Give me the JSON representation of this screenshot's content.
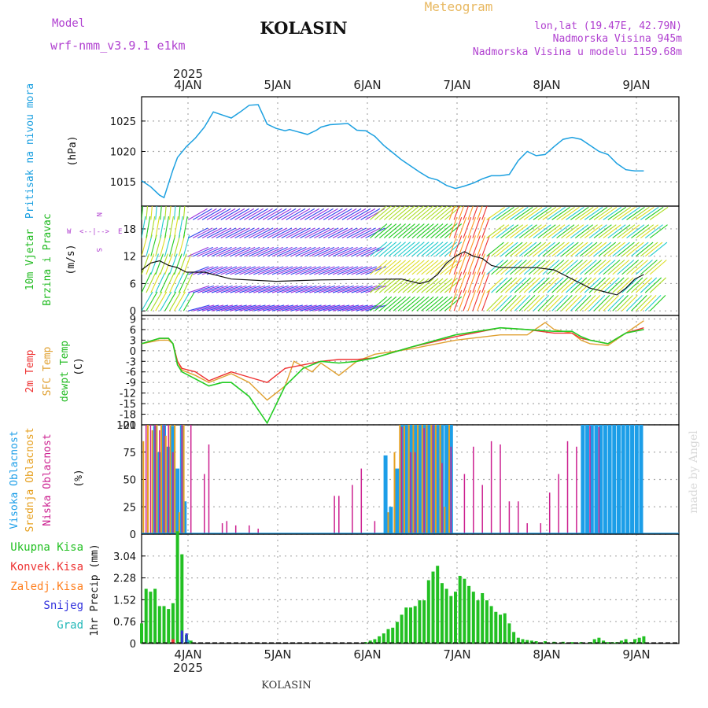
{
  "header": {
    "model_label": "Model",
    "model_name": "wrf-nmm_v3.9.1 e1km",
    "station": "KOLASIN",
    "product": "Meteogram",
    "coords": "lon,lat (19.47E, 42.79N)",
    "elevation": "Nadmorska Visina 945m",
    "model_elevation": "Nadmorska Visina u modelu 1159.68m",
    "footer_station": "KOLASIN",
    "credit": "made by Angel"
  },
  "time_axis": {
    "year": "2025",
    "days": [
      "4JAN",
      "5JAN",
      "6JAN",
      "7JAN",
      "8JAN",
      "9JAN"
    ]
  },
  "colors": {
    "pressure": "#1ca0e0",
    "temp2m": "#ee3333",
    "sfc": "#e0a030",
    "dew": "#22cc22",
    "high": "#1c9ee8",
    "mid": "#e6a020",
    "low": "#cc2090",
    "total": "#22c022",
    "convective": "#ee3333",
    "freezing": "#ff8020",
    "snow": "#3333dd",
    "hail": "#22b8b8",
    "title_purple": "#b040d0",
    "meteogram_orange": "#e8b860"
  },
  "chart_data": [
    {
      "type": "line",
      "title": "",
      "ylabel": [
        "Pritisak na nivou mora",
        "(hPa)"
      ],
      "yticks": [
        1015,
        1020,
        1025
      ],
      "ylim": [
        1011,
        1029
      ],
      "series": [
        {
          "name": "Pritisak na nivou mora",
          "x": [
            0.0,
            0.1,
            0.2,
            0.25,
            0.35,
            0.4,
            0.5,
            0.6,
            0.7,
            0.8,
            0.9,
            1.0,
            1.1,
            1.2,
            1.3,
            1.4,
            1.5,
            1.6,
            1.65,
            1.75,
            1.85,
            1.95,
            2.0,
            2.1,
            2.2,
            2.3,
            2.4,
            2.5,
            2.6,
            2.7,
            2.8,
            2.9,
            3.0,
            3.1,
            3.2,
            3.3,
            3.4,
            3.5,
            3.6,
            3.7,
            3.8,
            3.9,
            4.0,
            4.1,
            4.2,
            4.3,
            4.4,
            4.5,
            4.6,
            4.7,
            4.8,
            4.9,
            5.0,
            5.1,
            5.2,
            5.3,
            5.4,
            5.5,
            5.6
          ],
          "y": [
            1015.2,
            1014.2,
            1012.8,
            1012.4,
            1017.0,
            1019.0,
            1020.8,
            1022.2,
            1024.0,
            1026.5,
            1026.0,
            1025.5,
            1026.5,
            1027.6,
            1027.7,
            1024.5,
            1023.8,
            1023.4,
            1023.6,
            1023.2,
            1022.8,
            1023.5,
            1024.0,
            1024.4,
            1024.5,
            1024.6,
            1023.5,
            1023.4,
            1022.5,
            1021.0,
            1019.8,
            1018.6,
            1017.6,
            1016.6,
            1015.7,
            1015.3,
            1014.4,
            1013.9,
            1014.3,
            1014.8,
            1015.5,
            1016.0,
            1016.0,
            1016.2,
            1018.5,
            1020.0,
            1019.3,
            1019.5,
            1020.8,
            1022.0,
            1022.3,
            1022.0,
            1021.0,
            1020.0,
            1019.5,
            1018.0,
            1017.0,
            1016.8,
            1016.8
          ]
        }
      ]
    },
    {
      "type": "line",
      "title": "",
      "ylabel": [
        "10m Vjetar",
        "Brzina i Pravac",
        "(m/s)"
      ],
      "yticks": [
        0,
        6,
        12,
        18
      ],
      "ylim": [
        -1,
        23
      ],
      "legend": [
        "W",
        "<--|-->",
        "E",
        "N",
        "S"
      ],
      "series": [
        {
          "name": "10m Vjetar",
          "x": [
            0.0,
            0.1,
            0.2,
            0.3,
            0.4,
            0.5,
            0.6,
            0.7,
            0.8,
            0.9,
            1.0,
            1.5,
            2.0,
            2.5,
            2.9,
            3.0,
            3.1,
            3.2,
            3.3,
            3.4,
            3.5,
            3.6,
            3.7,
            3.8,
            3.9,
            4.0,
            4.2,
            4.4,
            4.6,
            4.7,
            4.8,
            4.9,
            5.0,
            5.1,
            5.2,
            5.3,
            5.4,
            5.5,
            5.6
          ],
          "y": [
            9.0,
            10.5,
            11.0,
            10.0,
            9.5,
            8.5,
            8.5,
            8.5,
            8.0,
            7.5,
            7.0,
            6.5,
            6.8,
            6.9,
            7.0,
            6.5,
            6.0,
            6.5,
            8.0,
            10.5,
            12.0,
            13.0,
            12.0,
            11.5,
            10.0,
            9.5,
            9.5,
            9.5,
            9.0,
            8.0,
            7.0,
            6.0,
            5.0,
            4.5,
            4.0,
            3.5,
            5.0,
            7.0,
            8.0
          ]
        }
      ]
    },
    {
      "type": "line",
      "title": "",
      "ylabel": [
        "2m Temp",
        "SFC Temp",
        "dewpt Temp",
        "(C)"
      ],
      "yticks": [
        -21,
        -18,
        -15,
        -12,
        -9,
        -6,
        -3,
        0,
        3,
        6,
        9
      ],
      "ylim": [
        -21,
        10
      ],
      "series": [
        {
          "name": "2m Temp",
          "x": [
            0.0,
            0.2,
            0.3,
            0.35,
            0.4,
            0.45,
            0.6,
            0.75,
            0.9,
            1.0,
            1.2,
            1.4,
            1.6,
            1.8,
            2.0,
            2.2,
            2.4,
            2.6,
            3.0,
            3.5,
            4.0,
            4.3,
            4.6,
            4.8,
            4.9,
            5.0,
            5.2,
            5.4,
            5.6
          ],
          "y": [
            2.0,
            3.5,
            3.5,
            2.0,
            -3.0,
            -5.0,
            -6.0,
            -8.5,
            -7.0,
            -6.0,
            -7.5,
            -9.0,
            -5.0,
            -4.0,
            -3.0,
            -2.5,
            -2.5,
            -2.0,
            1.0,
            4.0,
            6.5,
            6.0,
            5.0,
            5.0,
            3.5,
            3.0,
            2.0,
            5.0,
            6.5
          ]
        },
        {
          "name": "SFC Temp",
          "x": [
            0.0,
            0.2,
            0.3,
            0.35,
            0.4,
            0.45,
            0.6,
            0.75,
            0.9,
            1.0,
            1.2,
            1.4,
            1.6,
            1.7,
            1.9,
            2.0,
            2.2,
            2.4,
            2.6,
            3.0,
            3.5,
            4.0,
            4.3,
            4.5,
            4.6,
            4.8,
            4.9,
            5.0,
            5.2,
            5.4,
            5.6
          ],
          "y": [
            2.0,
            3.0,
            3.0,
            2.0,
            -3.0,
            -5.5,
            -7.0,
            -9.0,
            -7.5,
            -6.5,
            -9.0,
            -14.0,
            -10.0,
            -3.0,
            -6.0,
            -3.5,
            -7.0,
            -3.0,
            -1.0,
            0.5,
            3.0,
            4.5,
            4.5,
            8.0,
            6.0,
            5.0,
            3.0,
            2.0,
            1.5,
            5.0,
            8.5
          ]
        },
        {
          "name": "dewpt Temp",
          "x": [
            0.0,
            0.2,
            0.3,
            0.35,
            0.4,
            0.45,
            0.6,
            0.75,
            0.9,
            1.0,
            1.2,
            1.4,
            1.6,
            1.8,
            2.0,
            2.2,
            2.4,
            2.6,
            3.0,
            3.5,
            4.0,
            4.3,
            4.6,
            4.8,
            4.9,
            5.0,
            5.2,
            5.4,
            5.6
          ],
          "y": [
            2.0,
            3.5,
            3.5,
            2.0,
            -4.0,
            -6.0,
            -8.0,
            -10.0,
            -9.0,
            -9.0,
            -13.0,
            -20.5,
            -10.0,
            -5.0,
            -3.0,
            -3.5,
            -3.0,
            -2.0,
            1.0,
            4.5,
            6.5,
            6.0,
            5.5,
            5.5,
            4.0,
            3.0,
            2.0,
            5.0,
            6.0
          ]
        }
      ]
    },
    {
      "type": "bar",
      "title": "",
      "ylabel": [
        "Visoka Oblacnost",
        "Srednja Oblacnost",
        "Niska Oblacnost",
        "(%)"
      ],
      "yticks": [
        0,
        25,
        50,
        75,
        100
      ],
      "ylim": [
        0,
        100
      ],
      "series": [
        {
          "name": "Visoka Oblacnost",
          "x": [
            0.15,
            0.2,
            0.25,
            0.3,
            0.35,
            0.4,
            0.45,
            0.48,
            2.72,
            2.78,
            2.85,
            2.9,
            2.95,
            3.0,
            3.05,
            3.1,
            3.15,
            3.2,
            3.25,
            3.3,
            3.35,
            3.4,
            3.45,
            4.92,
            4.97,
            5.02,
            5.07,
            5.12,
            5.17,
            5.22,
            5.27,
            5.32,
            5.37,
            5.42,
            5.47,
            5.52,
            5.57
          ],
          "values": [
            99,
            75,
            100,
            80,
            99,
            60,
            100,
            30,
            72,
            25,
            60,
            100,
            100,
            100,
            100,
            100,
            100,
            100,
            100,
            100,
            100,
            100,
            100,
            100,
            100,
            100,
            100,
            100,
            100,
            100,
            100,
            100,
            100,
            100,
            100,
            100,
            100
          ]
        },
        {
          "name": "Srednja Oblacnost",
          "x": [
            0.02,
            0.07,
            0.12,
            0.17,
            0.22,
            0.27,
            0.32,
            0.37,
            0.42,
            0.47,
            2.75,
            2.82,
            2.88,
            2.93,
            2.98,
            3.03,
            3.08,
            3.13,
            3.18,
            3.23,
            3.28,
            3.33,
            3.38,
            3.43
          ],
          "values": [
            85,
            100,
            95,
            100,
            100,
            90,
            100,
            100,
            20,
            100,
            20,
            75,
            100,
            99,
            100,
            100,
            100,
            100,
            100,
            100,
            100,
            100,
            25,
            100
          ]
        },
        {
          "name": "Niska Oblacnost",
          "x": [
            0.05,
            0.1,
            0.15,
            0.2,
            0.25,
            0.3,
            0.35,
            0.45,
            0.55,
            0.7,
            0.75,
            0.9,
            0.95,
            1.05,
            1.2,
            1.3,
            2.15,
            2.2,
            2.35,
            2.45,
            2.6,
            2.9,
            3.0,
            3.05,
            3.15,
            3.25,
            3.35,
            3.45,
            3.6,
            3.7,
            3.8,
            3.9,
            4.0,
            4.1,
            4.2,
            4.3,
            4.45,
            4.55,
            4.65,
            4.75,
            4.85,
            5.0,
            5.1
          ],
          "values": [
            100,
            100,
            100,
            95,
            100,
            100,
            75,
            100,
            100,
            55,
            82,
            10,
            12,
            8,
            8,
            5,
            35,
            35,
            45,
            60,
            12,
            98,
            75,
            75,
            97,
            100,
            65,
            80,
            55,
            80,
            45,
            85,
            82,
            30,
            30,
            10,
            10,
            38,
            55,
            85,
            80,
            99,
            98
          ]
        }
      ]
    },
    {
      "type": "bar",
      "title": "",
      "ylabel": [
        "1hr Precip (mm)"
      ],
      "yticks": [
        0,
        0.76,
        1.52,
        2.28,
        3.04
      ],
      "ylim": [
        0,
        3.8
      ],
      "legend": [
        "Ukupna Kisa",
        "Konvek.Kisa",
        "Zaledj.Kisa",
        "Snijeg",
        "Grad"
      ],
      "series": [
        {
          "name": "Ukupna Kisa",
          "x": [
            0.0,
            0.05,
            0.1,
            0.15,
            0.2,
            0.25,
            0.3,
            0.35,
            0.4,
            0.45,
            0.5,
            0.55,
            2.5,
            2.55,
            2.6,
            2.65,
            2.7,
            2.75,
            2.8,
            2.85,
            2.9,
            2.95,
            3.0,
            3.05,
            3.1,
            3.15,
            3.2,
            3.25,
            3.3,
            3.35,
            3.4,
            3.45,
            3.5,
            3.55,
            3.6,
            3.65,
            3.7,
            3.75,
            3.8,
            3.85,
            3.9,
            3.95,
            4.0,
            4.05,
            4.1,
            4.15,
            4.2,
            4.25,
            4.3,
            4.35,
            4.4,
            4.5,
            4.6,
            4.7,
            4.8,
            4.9,
            5.0,
            5.05,
            5.1,
            5.15,
            5.2,
            5.25,
            5.3,
            5.35,
            5.4,
            5.45,
            5.5,
            5.55,
            5.6
          ],
          "values": [
            0.7,
            1.9,
            1.8,
            1.9,
            1.3,
            1.3,
            1.2,
            1.4,
            3.9,
            3.1,
            0.3,
            0.1,
            0.05,
            0.1,
            0.15,
            0.25,
            0.35,
            0.5,
            0.55,
            0.75,
            1.0,
            1.25,
            1.25,
            1.3,
            1.5,
            1.5,
            2.2,
            2.5,
            2.7,
            2.1,
            1.9,
            1.65,
            1.8,
            2.35,
            2.25,
            2.0,
            1.8,
            1.5,
            1.75,
            1.5,
            1.3,
            1.1,
            1.0,
            1.05,
            0.7,
            0.4,
            0.2,
            0.15,
            0.12,
            0.1,
            0.08,
            0.08,
            0.06,
            0.06,
            0.05,
            0.05,
            0.05,
            0.15,
            0.2,
            0.1,
            0.05,
            0.05,
            0.05,
            0.1,
            0.15,
            0.05,
            0.15,
            0.2,
            0.25
          ]
        },
        {
          "name": "Konvek.Kisa",
          "x": [
            0.35
          ],
          "values": [
            0.15
          ]
        },
        {
          "name": "Snijeg",
          "x": [
            0.45,
            0.5
          ],
          "values": [
            0.45,
            0.35
          ]
        },
        {
          "name": "Grad",
          "x": [
            0.52
          ],
          "values": [
            0.12
          ]
        }
      ]
    }
  ]
}
